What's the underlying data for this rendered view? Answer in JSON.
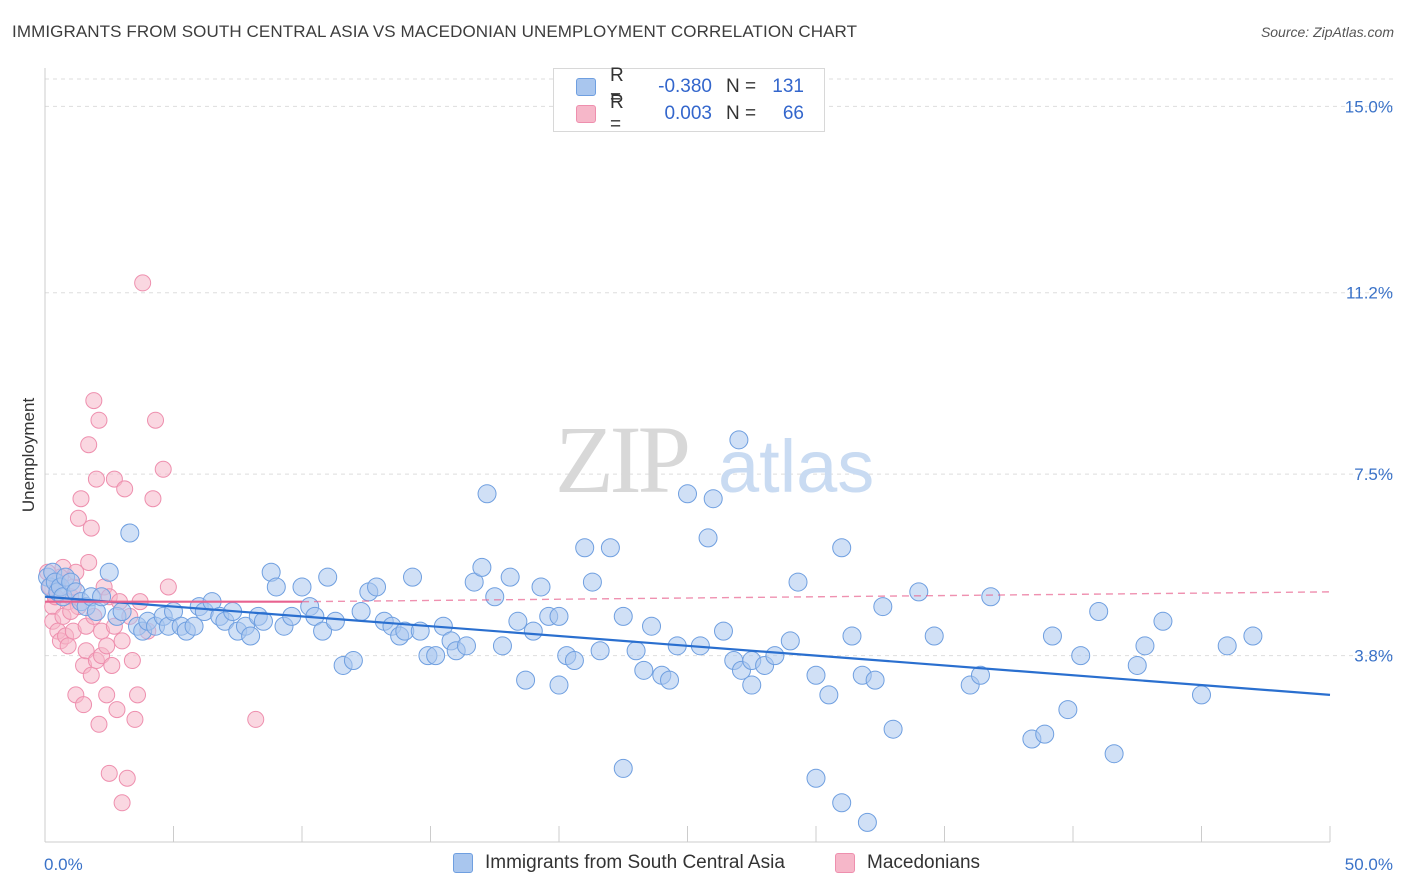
{
  "header": {
    "title": "IMMIGRANTS FROM SOUTH CENTRAL ASIA VS MACEDONIAN UNEMPLOYMENT CORRELATION CHART",
    "source": "Source: ZipAtlas.com"
  },
  "watermark": {
    "zip": "ZIP",
    "atlas": "atlas"
  },
  "legend": {
    "rows": [
      {
        "r_label": "R =",
        "r_value": "-0.380",
        "n_label": "N =",
        "n_value": "131"
      },
      {
        "r_label": "R =",
        "r_value": "0.003",
        "n_label": "N =",
        "n_value": "66"
      }
    ]
  },
  "bottom_legend": {
    "series1": "Immigrants from South Central Asia",
    "series2": "Macedonians"
  },
  "colors": {
    "blue_fill": "#a9c6ee",
    "blue_stroke": "#6f9fe0",
    "blue_line": "#2a6fcf",
    "pink_fill": "#f6b7c9",
    "pink_stroke": "#ee8fae",
    "pink_line": "#e8628f",
    "axis_text": "#3a72c8",
    "grid": "#dddddd"
  },
  "chart_data": {
    "type": "scatter",
    "title": "IMMIGRANTS FROM SOUTH CENTRAL ASIA VS MACEDONIAN UNEMPLOYMENT CORRELATION CHART",
    "xlabel": "",
    "ylabel": "Unemployment",
    "xlim": [
      0,
      50
    ],
    "ylim": [
      0,
      15.7
    ],
    "x_tick_labels": [
      "0.0%",
      "50.0%"
    ],
    "y_ticks": [
      3.8,
      7.5,
      11.2,
      15.0
    ],
    "y_tick_labels": [
      "3.8%",
      "7.5%",
      "11.2%",
      "15.0%"
    ],
    "grid": true,
    "legend_position": "top-center",
    "series": [
      {
        "name": "Immigrants from South Central Asia",
        "color": "blue",
        "trend": {
          "x": [
            0,
            50
          ],
          "y": [
            5.0,
            3.0
          ],
          "style": "solid"
        },
        "points": [
          [
            0.1,
            5.4
          ],
          [
            0.2,
            5.2
          ],
          [
            0.3,
            5.5
          ],
          [
            0.4,
            5.3
          ],
          [
            0.5,
            5.1
          ],
          [
            0.6,
            5.2
          ],
          [
            0.7,
            5.0
          ],
          [
            0.8,
            5.4
          ],
          [
            1.0,
            5.3
          ],
          [
            1.2,
            5.1
          ],
          [
            1.4,
            4.9
          ],
          [
            1.6,
            4.8
          ],
          [
            1.8,
            5.0
          ],
          [
            2.0,
            4.7
          ],
          [
            2.2,
            5.0
          ],
          [
            2.5,
            5.5
          ],
          [
            2.8,
            4.6
          ],
          [
            3.0,
            4.7
          ],
          [
            3.3,
            6.3
          ],
          [
            3.6,
            4.4
          ],
          [
            3.8,
            4.3
          ],
          [
            4.0,
            4.5
          ],
          [
            4.3,
            4.4
          ],
          [
            4.6,
            4.6
          ],
          [
            4.8,
            4.4
          ],
          [
            5.0,
            4.7
          ],
          [
            5.3,
            4.4
          ],
          [
            5.5,
            4.3
          ],
          [
            5.8,
            4.4
          ],
          [
            6.0,
            4.8
          ],
          [
            6.2,
            4.7
          ],
          [
            6.5,
            4.9
          ],
          [
            6.8,
            4.6
          ],
          [
            7.0,
            4.5
          ],
          [
            7.3,
            4.7
          ],
          [
            7.5,
            4.3
          ],
          [
            7.8,
            4.4
          ],
          [
            8.0,
            4.2
          ],
          [
            8.3,
            4.6
          ],
          [
            8.5,
            4.5
          ],
          [
            8.8,
            5.5
          ],
          [
            9.0,
            5.2
          ],
          [
            9.3,
            4.4
          ],
          [
            9.6,
            4.6
          ],
          [
            10.0,
            5.2
          ],
          [
            10.3,
            4.8
          ],
          [
            10.5,
            4.6
          ],
          [
            10.8,
            4.3
          ],
          [
            11.0,
            5.4
          ],
          [
            11.3,
            4.5
          ],
          [
            11.6,
            3.6
          ],
          [
            12.0,
            3.7
          ],
          [
            12.3,
            4.7
          ],
          [
            12.6,
            5.1
          ],
          [
            12.9,
            5.2
          ],
          [
            13.2,
            4.5
          ],
          [
            13.5,
            4.4
          ],
          [
            13.8,
            4.2
          ],
          [
            14.0,
            4.3
          ],
          [
            14.3,
            5.4
          ],
          [
            14.6,
            4.3
          ],
          [
            14.9,
            3.8
          ],
          [
            15.2,
            3.8
          ],
          [
            15.5,
            4.4
          ],
          [
            15.8,
            4.1
          ],
          [
            16.0,
            3.9
          ],
          [
            16.4,
            4.0
          ],
          [
            16.7,
            5.3
          ],
          [
            17.0,
            5.6
          ],
          [
            17.2,
            7.1
          ],
          [
            17.5,
            5.0
          ],
          [
            17.8,
            4.0
          ],
          [
            18.1,
            5.4
          ],
          [
            18.4,
            4.5
          ],
          [
            18.7,
            3.3
          ],
          [
            19.0,
            4.3
          ],
          [
            19.3,
            5.2
          ],
          [
            19.6,
            4.6
          ],
          [
            20.0,
            4.6
          ],
          [
            20.3,
            3.8
          ],
          [
            20.6,
            3.7
          ],
          [
            21.0,
            6.0
          ],
          [
            21.3,
            5.3
          ],
          [
            21.6,
            3.9
          ],
          [
            22.0,
            6.0
          ],
          [
            22.5,
            4.6
          ],
          [
            23.0,
            3.9
          ],
          [
            23.3,
            3.5
          ],
          [
            23.6,
            4.4
          ],
          [
            24.0,
            3.4
          ],
          [
            24.3,
            3.3
          ],
          [
            24.6,
            4.0
          ],
          [
            25.0,
            7.1
          ],
          [
            25.5,
            4.0
          ],
          [
            25.8,
            6.2
          ],
          [
            26.0,
            7.0
          ],
          [
            26.4,
            4.3
          ],
          [
            26.8,
            3.7
          ],
          [
            27.1,
            3.5
          ],
          [
            27.5,
            3.7
          ],
          [
            28.0,
            3.6
          ],
          [
            28.4,
            3.8
          ],
          [
            29.0,
            4.1
          ],
          [
            29.3,
            5.3
          ],
          [
            30.0,
            3.4
          ],
          [
            30.5,
            3.0
          ],
          [
            31.0,
            6.0
          ],
          [
            31.4,
            4.2
          ],
          [
            31.8,
            3.4
          ],
          [
            32.3,
            3.3
          ],
          [
            32.6,
            4.8
          ],
          [
            33.0,
            2.3
          ],
          [
            34.0,
            5.1
          ],
          [
            34.6,
            4.2
          ],
          [
            36.0,
            3.2
          ],
          [
            36.4,
            3.4
          ],
          [
            36.8,
            5.0
          ],
          [
            38.4,
            2.1
          ],
          [
            38.9,
            2.2
          ],
          [
            39.2,
            4.2
          ],
          [
            39.8,
            2.7
          ],
          [
            40.3,
            3.8
          ],
          [
            41.0,
            4.7
          ],
          [
            41.6,
            1.8
          ],
          [
            42.5,
            3.6
          ],
          [
            42.8,
            4.0
          ],
          [
            43.5,
            4.5
          ],
          [
            45.0,
            3.0
          ],
          [
            46.0,
            4.0
          ],
          [
            47.0,
            4.2
          ],
          [
            30.0,
            1.3
          ],
          [
            31.0,
            0.8
          ],
          [
            32.0,
            0.4
          ],
          [
            22.5,
            1.5
          ],
          [
            27.0,
            8.2
          ],
          [
            27.5,
            3.2
          ],
          [
            20.0,
            3.2
          ]
        ]
      },
      {
        "name": "Macedonians",
        "color": "pink",
        "trend": {
          "x": [
            0,
            10
          ],
          "y": [
            4.9,
            4.9
          ],
          "style": "solid",
          "extended_dashed_to": 50
        },
        "points": [
          [
            0.1,
            5.5
          ],
          [
            0.2,
            5.2
          ],
          [
            0.3,
            4.8
          ],
          [
            0.3,
            4.5
          ],
          [
            0.4,
            5.0
          ],
          [
            0.5,
            4.3
          ],
          [
            0.5,
            5.3
          ],
          [
            0.6,
            4.1
          ],
          [
            0.7,
            4.6
          ],
          [
            0.7,
            5.6
          ],
          [
            0.8,
            4.2
          ],
          [
            0.9,
            4.0
          ],
          [
            0.9,
            4.9
          ],
          [
            1.0,
            5.0
          ],
          [
            1.1,
            5.2
          ],
          [
            1.1,
            4.3
          ],
          [
            1.2,
            3.0
          ],
          [
            1.2,
            5.5
          ],
          [
            1.3,
            6.6
          ],
          [
            1.3,
            4.8
          ],
          [
            1.4,
            7.0
          ],
          [
            1.5,
            3.6
          ],
          [
            1.5,
            2.8
          ],
          [
            1.6,
            4.4
          ],
          [
            1.6,
            3.9
          ],
          [
            1.7,
            8.1
          ],
          [
            1.7,
            5.7
          ],
          [
            1.8,
            3.4
          ],
          [
            1.8,
            6.4
          ],
          [
            1.9,
            9.0
          ],
          [
            1.9,
            4.6
          ],
          [
            2.0,
            7.4
          ],
          [
            2.0,
            3.7
          ],
          [
            2.1,
            2.4
          ],
          [
            2.1,
            8.6
          ],
          [
            2.2,
            4.3
          ],
          [
            2.2,
            3.8
          ],
          [
            2.3,
            5.2
          ],
          [
            2.4,
            3.0
          ],
          [
            2.4,
            4.0
          ],
          [
            2.5,
            1.4
          ],
          [
            2.5,
            5.0
          ],
          [
            2.6,
            3.6
          ],
          [
            2.7,
            4.4
          ],
          [
            2.7,
            7.4
          ],
          [
            2.8,
            2.7
          ],
          [
            2.9,
            4.9
          ],
          [
            3.0,
            4.1
          ],
          [
            3.0,
            0.8
          ],
          [
            3.1,
            7.2
          ],
          [
            3.2,
            1.3
          ],
          [
            3.3,
            4.6
          ],
          [
            3.4,
            3.7
          ],
          [
            3.5,
            2.5
          ],
          [
            3.6,
            3.0
          ],
          [
            3.7,
            4.9
          ],
          [
            3.8,
            11.4
          ],
          [
            4.0,
            4.3
          ],
          [
            4.2,
            7.0
          ],
          [
            4.3,
            8.6
          ],
          [
            4.6,
            7.6
          ],
          [
            4.8,
            5.2
          ],
          [
            0.4,
            5.0
          ],
          [
            0.6,
            5.4
          ],
          [
            8.2,
            2.5
          ],
          [
            1.0,
            4.7
          ]
        ]
      }
    ]
  }
}
